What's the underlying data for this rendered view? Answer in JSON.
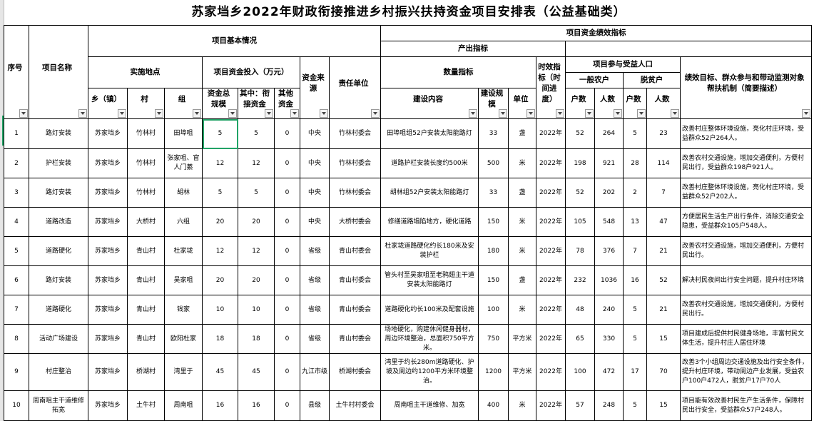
{
  "title": "苏家垱乡2022年财政衔接推进乡村振兴扶持资金项目安排表（公益基础类）",
  "headers": {
    "seq": "序号",
    "name": "项目名称",
    "basic": "项目基本情况",
    "perf": "项目资金绩效指标",
    "output": "产出指标",
    "location": "实施地点",
    "funding": "项目资金投入（万元）",
    "source": "资金来源",
    "unit_resp": "责任单位",
    "quantity": "数量指标",
    "timeliness": "时效指标（时间进度）",
    "beneficiary": "项目参与受益人口",
    "general": "一般农户",
    "poverty": "脱贫户",
    "goal": "绩效目标、群众参与和带动监测对象帮扶机制（简要描述）",
    "township": "乡（镇）",
    "village": "村",
    "group": "组",
    "total": "资金总规模",
    "linked": "其中：衔接资金",
    "other": "其他资金",
    "content": "建设内容",
    "scale": "建设规模",
    "measure": "单位",
    "households": "户数",
    "people": "人数",
    "households2": "户数",
    "people2": "人数"
  },
  "rows": [
    [
      "1",
      "路灯安装",
      "苏家垱乡",
      "竹林村",
      "田埠咀",
      "5",
      "5",
      "0",
      "中央",
      "竹林村委会",
      "田埠咀组52户安装太阳能路灯",
      "33",
      "盏",
      "2022年",
      "52",
      "264",
      "5",
      "23",
      "改善村庄整体环境设施，亮化村庄环境，受益群众52户264人。"
    ],
    [
      "2",
      "护栏安装",
      "苏家垱乡",
      "竹林村",
      "张家咀、官人门綦",
      "12",
      "12",
      "0",
      "中央",
      "竹林村委会",
      "道路护栏安装长度约500米",
      "500",
      "米",
      "2022年",
      "198",
      "921",
      "28",
      "114",
      "改善农村交通设施，增加交通便利，方便村民出行，受益群众198户921人。"
    ],
    [
      "3",
      "路灯安装",
      "苏家垱乡",
      "竹林村",
      "胡林",
      "5",
      "5",
      "0",
      "中央",
      "竹林村委会",
      "胡林组52户安装太阳能路灯",
      "33",
      "盏",
      "2022年",
      "52",
      "202",
      "2",
      "7",
      "改善村庄整体环境设施，亮化村庄环境，受益群众52户202人。"
    ],
    [
      "4",
      "道路改造",
      "苏家垱乡",
      "大桥村",
      "六组",
      "20",
      "20",
      "0",
      "中央",
      "大桥村委会",
      "修缮道路塌陷地方，硬化道路",
      "150",
      "米",
      "2022年",
      "105",
      "548",
      "13",
      "47",
      "方便居民生活生产出行条件，消除交通安全隐患，受益群众105户548人。"
    ],
    [
      "5",
      "道路硬化",
      "苏家垱乡",
      "青山村",
      "杜家垅",
      "12",
      "12",
      "0",
      "省级",
      "青山村委会",
      "杜家垅道路硬化约长180米及安装护栏",
      "180",
      "米",
      "2022年",
      "78",
      "376",
      "7",
      "21",
      "改善农村交通设施，增加交通便利，方便村民出行。"
    ],
    [
      "6",
      "路灯安装",
      "苏家垱乡",
      "青山村",
      "吴家咀",
      "20",
      "20",
      "0",
      "省级",
      "青山村委会",
      "管头村至吴家咀至老鸦翅主干道安装太阳能路灯",
      "150",
      "盏",
      "2022年",
      "232",
      "1036",
      "16",
      "52",
      "解决村民夜间出行安全问题，提升村庄环境"
    ],
    [
      "7",
      "道路硬化",
      "苏家垱乡",
      "青山村",
      "钱家",
      "10",
      "10",
      "0",
      "省级",
      "青山村委会",
      "道路硬化约长100米及配套设施",
      "100",
      "米",
      "2022年",
      "48",
      "240",
      "5",
      "21",
      "改善农村交通设施，增加交通便利，方便村民出行。"
    ],
    [
      "8",
      "活动广场建设",
      "苏家垱乡",
      "青山村",
      "欧阳杜家",
      "18",
      "18",
      "0",
      "省级",
      "青山村委会",
      "场地硬化，购建休闲健身器材，周边环境整治，总面积750平方米。",
      "750",
      "平方米",
      "2022年",
      "65",
      "330",
      "5",
      "15",
      "项目建成后提供村民健身场地，丰富村民文体生活，提升村庄人居住环境"
    ],
    [
      "9",
      "村庄整治",
      "苏家垱乡",
      "桥湖村",
      "湾里于",
      "45",
      "45",
      "0",
      "九江市级",
      "桥湖村委会",
      "湾里于约长280m道路硬化、护坡及周边约1200平方米环境整治。",
      "1200",
      "平方米",
      "2022年",
      "100",
      "472",
      "17",
      "70",
      "改善3个小组周边交通设施及出行安全条件，提升村庄环境，带动周边产业发展，受益农户100户472人，脱贫户17户70人"
    ],
    [
      "10",
      "周南咀主干道维修拓宽",
      "苏家垱乡",
      "土牛村",
      "周南咀",
      "16",
      "16",
      "0",
      "县级",
      "土牛村村委会",
      "周南咀主干道维修、加宽",
      "400",
      "米",
      "2022年",
      "57",
      "248",
      "5",
      "15",
      "项目能有效改善村民生产生活条件，保障村民出行安全，受益群众57户248人。"
    ]
  ],
  "filter_icon": "chevron-down-icon",
  "colors": {
    "selection": "#21a366",
    "grid": "#000000"
  }
}
